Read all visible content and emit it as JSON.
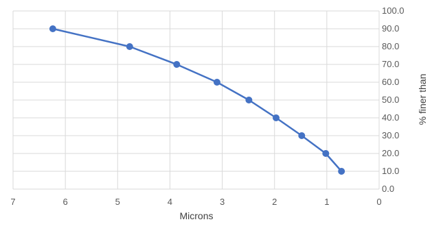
{
  "chart_data": {
    "type": "scatter",
    "title": "",
    "xlabel": "Microns",
    "ylabel": "% finer than",
    "xlim": [
      7,
      0
    ],
    "ylim": [
      0,
      100
    ],
    "x_reversed": true,
    "y_axis_side": "right",
    "grid": true,
    "x_ticks": [
      "7",
      "6",
      "5",
      "4",
      "3",
      "2",
      "1",
      "0"
    ],
    "y_ticks": [
      "0.0",
      "10.0",
      "20.0",
      "30.0",
      "40.0",
      "50.0",
      "60.0",
      "70.0",
      "80.0",
      "90.0",
      "100.0"
    ],
    "series": [
      {
        "color": "#4472C4",
        "points": [
          {
            "x": 6.24,
            "y": 90
          },
          {
            "x": 4.77,
            "y": 80
          },
          {
            "x": 3.87,
            "y": 70
          },
          {
            "x": 3.1,
            "y": 60
          },
          {
            "x": 2.49,
            "y": 50
          },
          {
            "x": 1.97,
            "y": 40
          },
          {
            "x": 1.48,
            "y": 30
          },
          {
            "x": 1.02,
            "y": 20
          },
          {
            "x": 0.72,
            "y": 10
          }
        ]
      }
    ]
  }
}
